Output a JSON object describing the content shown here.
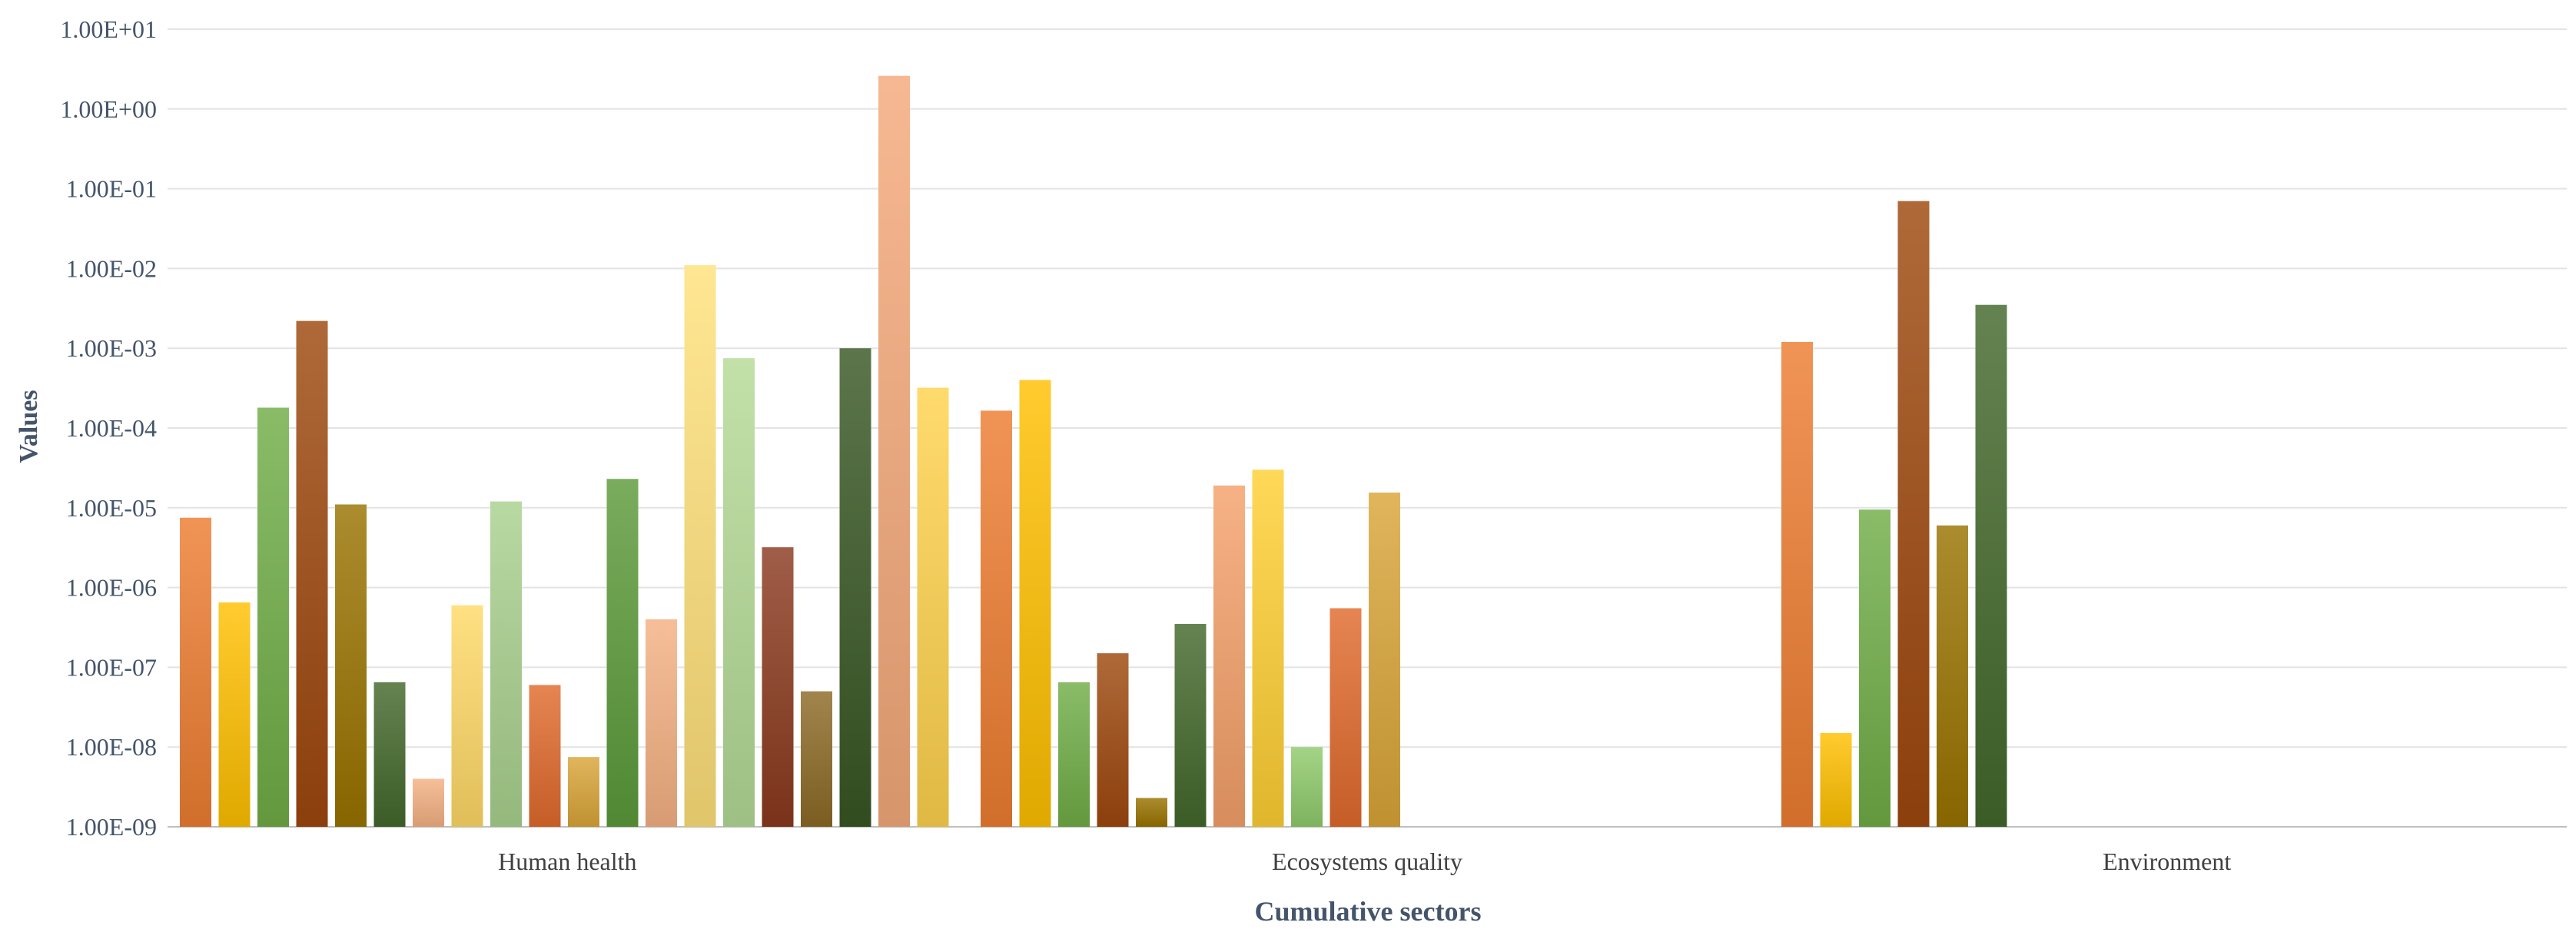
{
  "chart_data": {
    "type": "bar",
    "title": "",
    "xlabel": "Cumulative sectors",
    "ylabel": "Values",
    "y_scale": "log",
    "ylim": [
      1e-09,
      10
    ],
    "y_ticks": [
      "1.00E-09",
      "1.00E-08",
      "1.00E-07",
      "1.00E-06",
      "1.00E-05",
      "1.00E-04",
      "1.00E-03",
      "1.00E-02",
      "1.00E-01",
      "1.00E+00",
      "1.00E+01"
    ],
    "grid": true,
    "legend": "none",
    "categories": [
      "Human health",
      "Ecosystems quality",
      "Environment"
    ],
    "groups": [
      {
        "category": "Human health",
        "bars": [
          {
            "value": 7.5e-06,
            "color": "#ED7D31"
          },
          {
            "value": 6.5e-07,
            "color": "#FFC000"
          },
          {
            "value": 0.00018,
            "color": "#70AD47"
          },
          {
            "value": 0.0022,
            "color": "#9E480E"
          },
          {
            "value": 1.1e-05,
            "color": "#997300"
          },
          {
            "value": 6.5e-08,
            "color": "#43682B"
          },
          {
            "value": 4e-09,
            "color": "#F4B183"
          },
          {
            "value": 6e-07,
            "color": "#FFD966"
          },
          {
            "value": 1.2e-05,
            "color": "#A9D18E"
          },
          {
            "value": 6e-08,
            "color": "#E06A2C"
          },
          {
            "value": 7.5e-09,
            "color": "#D9A538"
          },
          {
            "value": 2.3e-05,
            "color": "#5B9A3A"
          },
          {
            "value": 4e-07,
            "color": "#F4B183"
          },
          {
            "value": 0.011,
            "color": "#FFE07A"
          },
          {
            "value": 0.00075,
            "color": "#B4DA96"
          },
          {
            "value": 3.2e-06,
            "color": "#8B3A1E"
          },
          {
            "value": 5e-08,
            "color": "#8C6A26"
          },
          {
            "value": 0.001,
            "color": "#385723"
          },
          {
            "value": 2.6,
            "color": "#F4A97A"
          },
          {
            "value": 0.00032,
            "color": "#FFD24D"
          }
        ]
      },
      {
        "category": "Ecosystems quality",
        "bars": [
          {
            "value": 0.000165,
            "color": "#ED7D31"
          },
          {
            "value": 0.0004,
            "color": "#FFC000"
          },
          {
            "value": 6.5e-08,
            "color": "#70AD47"
          },
          {
            "value": 1.5e-07,
            "color": "#9E480E"
          },
          {
            "value": 2.3e-09,
            "color": "#997300"
          },
          {
            "value": 3.5e-07,
            "color": "#43682B"
          },
          {
            "value": 1.9e-05,
            "color": "#F4A06A"
          },
          {
            "value": 3e-05,
            "color": "#FFCF33"
          },
          {
            "value": 1e-08,
            "color": "#8FCB6B"
          },
          {
            "value": 5.5e-07,
            "color": "#E06A2C"
          },
          {
            "value": 1.55e-05,
            "color": "#D9A538"
          }
        ]
      },
      {
        "category": "Environment",
        "bars": [
          {
            "value": 0.0012,
            "color": "#ED7D31"
          },
          {
            "value": 1.5e-08,
            "color": "#FFC000"
          },
          {
            "value": 9.5e-06,
            "color": "#70AD47"
          },
          {
            "value": 0.07,
            "color": "#9E480E"
          },
          {
            "value": 6e-06,
            "color": "#997300"
          },
          {
            "value": 0.0035,
            "color": "#43682B"
          }
        ]
      }
    ]
  }
}
